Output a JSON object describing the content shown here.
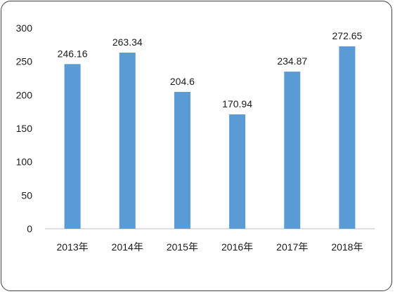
{
  "chart_data": {
    "type": "bar",
    "categories": [
      "2013年",
      "2014年",
      "2015年",
      "2016年",
      "2017年",
      "2018年"
    ],
    "values": [
      246.16,
      263.34,
      204.6,
      170.94,
      234.87,
      272.65
    ],
    "data_labels": [
      "246.16",
      "263.34",
      "204.6",
      "170.94",
      "234.87",
      "272.65"
    ],
    "y_ticks": [
      "0",
      "50",
      "100",
      "150",
      "200",
      "250",
      "300"
    ],
    "ylim": [
      0,
      300
    ],
    "grid": false,
    "legend": "none",
    "bar_color": "#5B9BD5",
    "axis_color": "#bfbfbf"
  }
}
